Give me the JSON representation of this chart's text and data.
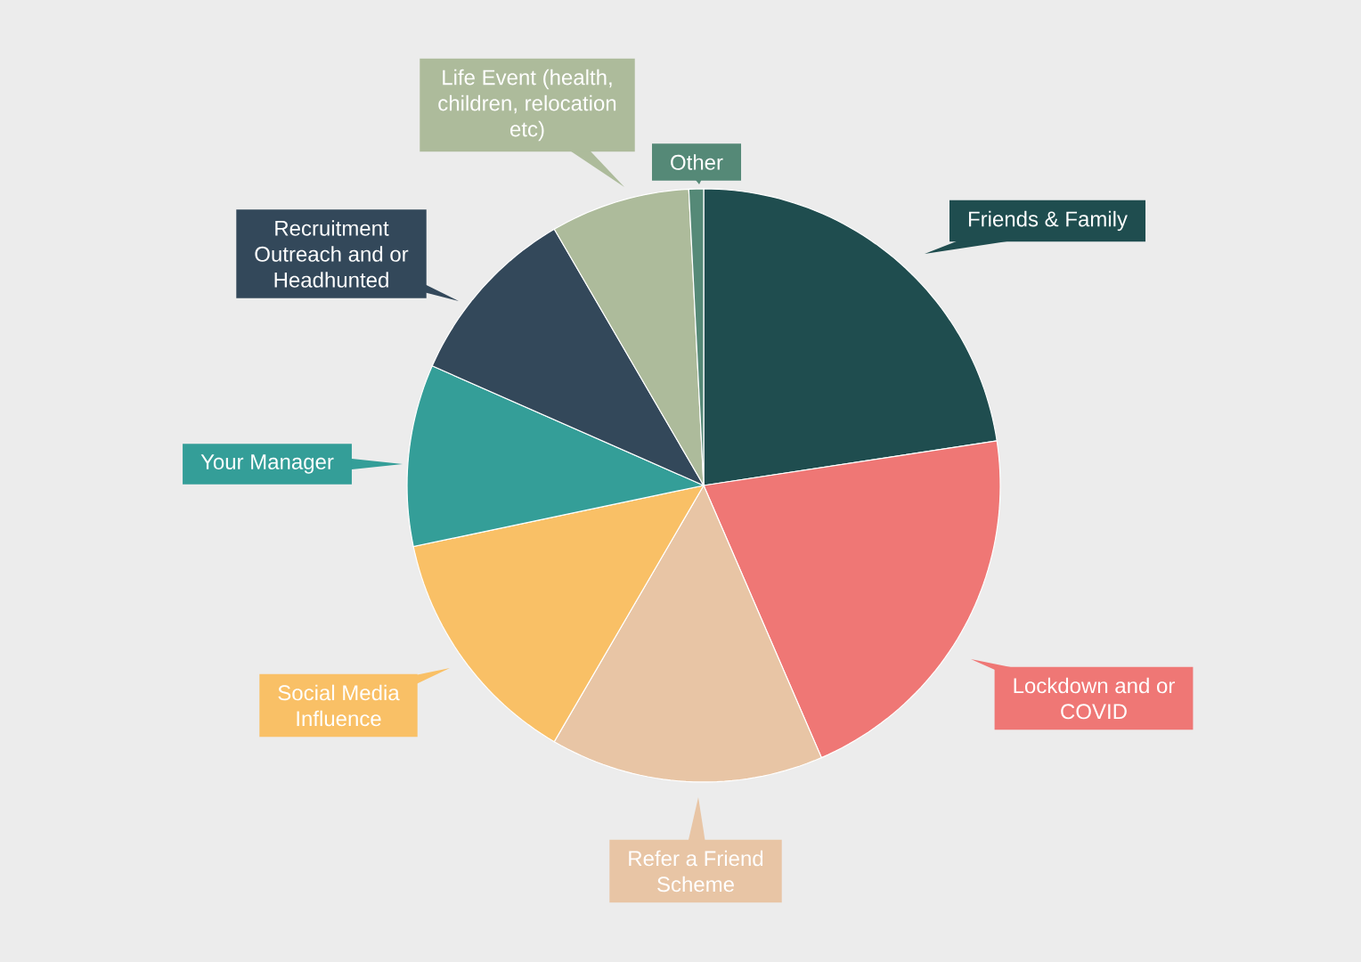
{
  "chart_data": {
    "type": "pie",
    "categories": [
      "Friends & Family",
      "Lockdown and or COVID",
      "Refer a Friend Scheme",
      "Social Media Influence",
      "Your Manager",
      "Recruitment Outreach and or Headhunted",
      "Life Event (health, children, relocation etc)",
      "Other"
    ],
    "values": [
      22.6,
      20.9,
      14.9,
      13.3,
      9.9,
      10.0,
      7.6,
      0.8
    ],
    "colors": [
      "#1f4d4f",
      "#ef7775",
      "#e8c5a5",
      "#f9c066",
      "#349e98",
      "#33485a",
      "#adbb9b",
      "#558977"
    ]
  }
}
